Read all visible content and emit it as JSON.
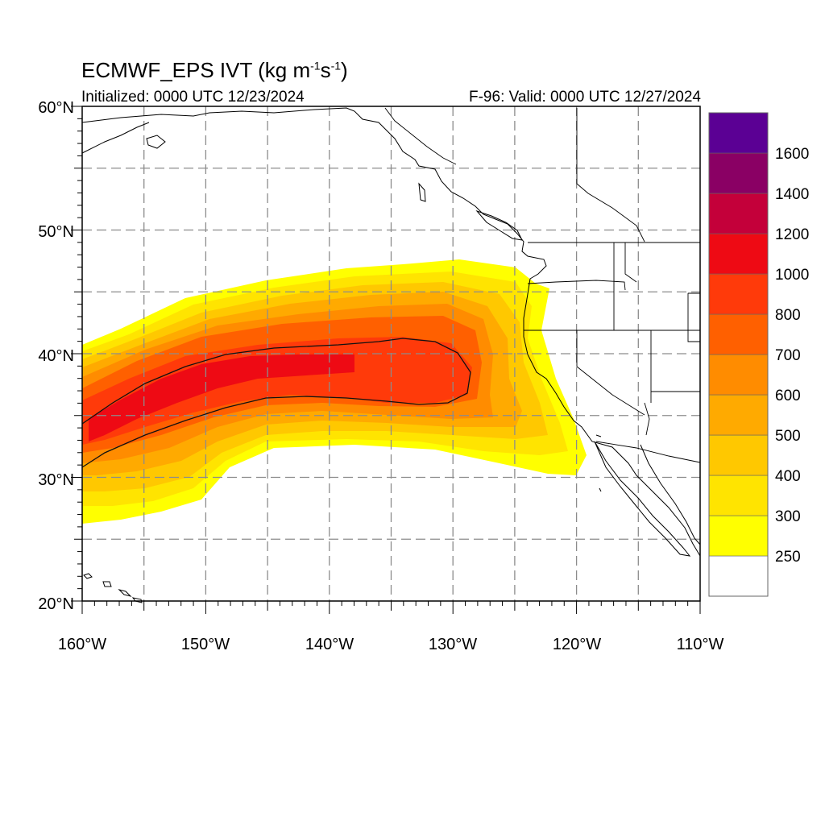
{
  "header": {
    "title_main": "ECMWF_EPS IVT (kg m",
    "title_exp1": "-1",
    "title_mid": "s",
    "title_exp2": "-1",
    "title_end": ")",
    "initialized": "Initialized: 0000 UTC 12/23/2024",
    "valid": "F-96: Valid: 0000 UTC 12/27/2024"
  },
  "map": {
    "region": "Northeast Pacific / US West Coast",
    "lon_range": [
      -160,
      -110
    ],
    "lat_range": [
      20,
      60
    ],
    "lat_labels": [
      {
        "lat": 60,
        "label": "60°N"
      },
      {
        "lat": 50,
        "label": "50°N"
      },
      {
        "lat": 40,
        "label": "40°N"
      },
      {
        "lat": 30,
        "label": "30°N"
      },
      {
        "lat": 20,
        "label": "20°N"
      }
    ],
    "lon_labels": [
      {
        "lon": -160,
        "label": "160°W"
      },
      {
        "lon": -150,
        "label": "150°W"
      },
      {
        "lon": -140,
        "label": "140°W"
      },
      {
        "lon": -130,
        "label": "130°W"
      },
      {
        "lon": -120,
        "label": "120°W"
      },
      {
        "lon": -110,
        "label": "110°W"
      }
    ],
    "gridline_lats": [
      25,
      30,
      35,
      40,
      45,
      50,
      55
    ],
    "gridline_lons": [
      -155,
      -150,
      -145,
      -140,
      -135,
      -130,
      -125,
      -120,
      -115
    ],
    "gridline_style": "dashed gray",
    "contour_outline_ivt": 800
  },
  "colorbar": {
    "labels": [
      "1600",
      "1400",
      "1200",
      "1000",
      "800",
      "700",
      "600",
      "500",
      "400",
      "300",
      "250"
    ],
    "colors": [
      "#ffffff",
      "#ffff00",
      "#ffe400",
      "#ffc800",
      "#ffaa00",
      "#ff8c00",
      "#ff6000",
      "#ff3a0a",
      "#ee0a14",
      "#c4003a",
      "#8a0064",
      "#5b0094"
    ]
  },
  "colors": {
    "frame": "#000000",
    "grid": "#8c8c8c",
    "coast": "#000000"
  }
}
